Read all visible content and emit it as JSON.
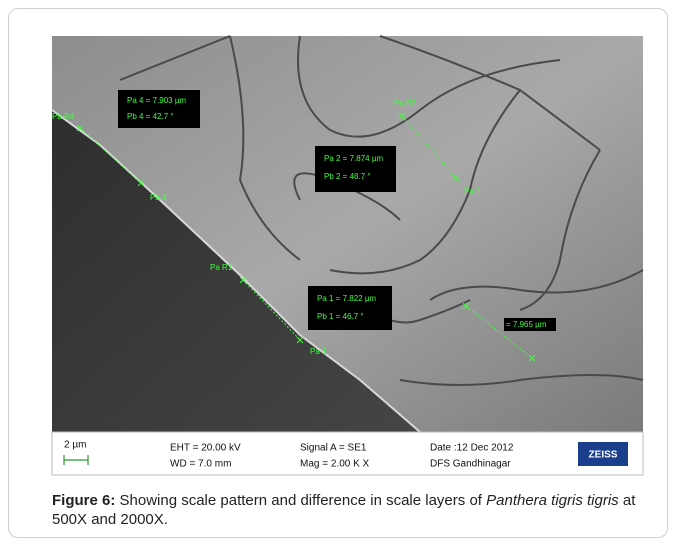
{
  "annotations": {
    "boxes": [
      [
        "Pa 4 = 7.903 µm",
        "Pb 4 = 42.7 °"
      ],
      [
        "Pa 2 = 7.874 µm",
        "Pb 2 = 48.7 °"
      ],
      [
        "Pa 1 = 7.822 µm",
        "Pb 1 = 46.7 °"
      ]
    ],
    "labels": [
      "Pa R4",
      "Pa 4",
      "Pa R2",
      "Pa 2",
      "Pa R1",
      "Pa 1",
      "= 7.965 µm"
    ]
  },
  "info_bar": {
    "scale": "2 µm",
    "eht": "EHT = 20.00 kV",
    "wd": "WD = 7.0 mm",
    "signal": "Signal A = SE1",
    "mag": "Mag = 2.00 K X",
    "date": "Date :12 Dec 2012",
    "location": "DFS Gandhinagar",
    "logo": "ZEISS"
  },
  "caption": {
    "label": "Figure 6:",
    "text_1": " Showing scale pattern and difference in scale layers of ",
    "species": "Panthera tigris tigris",
    "text_2": " at 500X and 2000X."
  }
}
